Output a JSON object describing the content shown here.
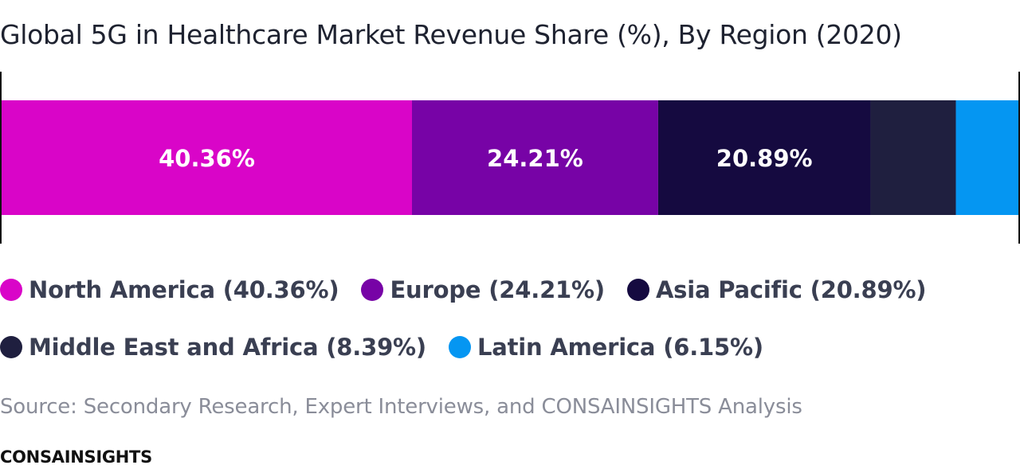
{
  "chart_data": {
    "type": "bar",
    "orientation": "horizontal-stacked-100",
    "title": "Global 5G in Healthcare Market Revenue Share (%), By Region (2020)",
    "unit": "%",
    "series": [
      {
        "name": "North America",
        "value": 40.36,
        "color": "#d905c8",
        "data_label": "40.36%",
        "legend_label": "North America (40.36%)"
      },
      {
        "name": "Europe",
        "value": 24.21,
        "color": "#7703a6",
        "data_label": "24.21%",
        "legend_label": "Europe (24.21%)"
      },
      {
        "name": "Asia Pacific",
        "value": 20.89,
        "color": "#150a40",
        "data_label": "20.89%",
        "legend_label": "Asia Pacific (20.89%)"
      },
      {
        "name": "Middle East and Africa",
        "value": 8.39,
        "color": "#1f1f3f",
        "data_label": "",
        "legend_label": "Middle East and Africa (8.39%)"
      },
      {
        "name": "Latin America",
        "value": 6.15,
        "color": "#0596f2",
        "data_label": "",
        "legend_label": "Latin America (6.15%)"
      }
    ],
    "legend_position": "bottom",
    "grid": false
  },
  "source_text": "Source: Secondary Research, Expert Interviews, and CONSAINSIGHTS Analysis",
  "brand": "CONSAINSIGHTS"
}
